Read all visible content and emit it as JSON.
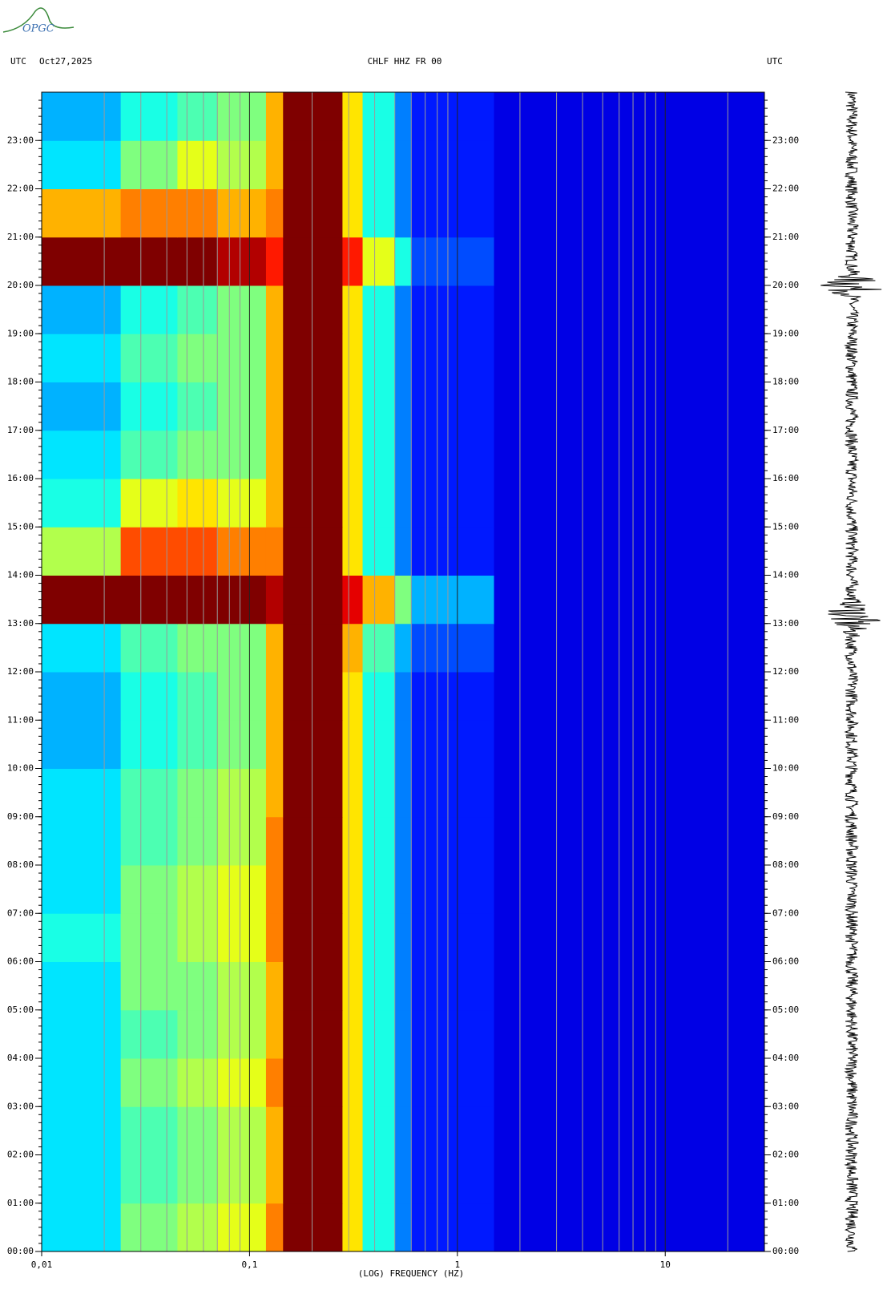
{
  "logo": "OPGC",
  "chart_data": {
    "type": "heatmap",
    "title": "CHLF HHZ FR 00",
    "left_label": "UTC",
    "date": "Oct27,2025",
    "right_label": "UTC",
    "x_label": "(LOG) FREQUENCY (HZ)",
    "log_x": true,
    "xlim": [
      0.01,
      30
    ],
    "xticks": [
      {
        "value": 0.01,
        "label": "0,01"
      },
      {
        "value": 0.1,
        "label": "0,1"
      },
      1,
      10
    ],
    "ylim": [
      0,
      24
    ],
    "yticks": [
      {
        "value": 0,
        "label": "00:00"
      },
      {
        "value": 1,
        "label": "01:00"
      },
      {
        "value": 2,
        "label": "02:00"
      },
      {
        "value": 3,
        "label": "03:00"
      },
      {
        "value": 4,
        "label": "04:00"
      },
      {
        "value": 5,
        "label": "05:00"
      },
      {
        "value": 6,
        "label": "06:00"
      },
      {
        "value": 7,
        "label": "07:00"
      },
      {
        "value": 8,
        "label": "08:00"
      },
      {
        "value": 9,
        "label": "09:00"
      },
      {
        "value": 10,
        "label": "10:00"
      },
      {
        "value": 11,
        "label": "11:00"
      },
      {
        "value": 12,
        "label": "12:00"
      },
      {
        "value": 13,
        "label": "13:00"
      },
      {
        "value": 14,
        "label": "14:00"
      },
      {
        "value": 15,
        "label": "15:00"
      },
      {
        "value": 16,
        "label": "16:00"
      },
      {
        "value": 17,
        "label": "17:00"
      },
      {
        "value": 18,
        "label": "18:00"
      },
      {
        "value": 19,
        "label": "19:00"
      },
      {
        "value": 20,
        "label": "20:00"
      },
      {
        "value": 21,
        "label": "21:00"
      },
      {
        "value": 22,
        "label": "22:00"
      },
      {
        "value": 23,
        "label": "23:00"
      }
    ],
    "bins": [
      0.01,
      0.024,
      0.045,
      0.07,
      0.12,
      0.145,
      0.28,
      0.35,
      0.5,
      0.6,
      1.5,
      30
    ],
    "zlim": [
      0,
      10
    ],
    "colormap": [
      "#00007f",
      "#0000ff",
      "#007fff",
      "#00ffff",
      "#7fff7f",
      "#ffff00",
      "#ff7f00",
      "#ff0000",
      "#7f0000"
    ],
    "grid": true,
    "values": [
      [
        3.5,
        5,
        5.5,
        6,
        7.5,
        10,
        6.5,
        4,
        2.5,
        1.5,
        1
      ],
      [
        3.5,
        4.5,
        5,
        5.5,
        7,
        10,
        6.5,
        4,
        2.5,
        1.5,
        1
      ],
      [
        3.5,
        4.5,
        5,
        5.5,
        7,
        10,
        6.5,
        4,
        2.5,
        1.5,
        1
      ],
      [
        3.5,
        5,
        5.5,
        6,
        7.5,
        10,
        6.5,
        4,
        2.5,
        1.5,
        1
      ],
      [
        3.5,
        4.5,
        5,
        5.5,
        7,
        10,
        6.5,
        4,
        2.5,
        1.5,
        1
      ],
      [
        3.5,
        5,
        5,
        5.5,
        7,
        10,
        6.5,
        4,
        2.5,
        1.5,
        1
      ],
      [
        4,
        5,
        5.5,
        6,
        7.5,
        10,
        6.5,
        4,
        2.5,
        1.5,
        1
      ],
      [
        3.5,
        5,
        5.5,
        6,
        7.5,
        10,
        6.5,
        4,
        2.5,
        1.5,
        1
      ],
      [
        3.5,
        4.5,
        5,
        5.5,
        7.5,
        10,
        6.5,
        4,
        2.5,
        1.5,
        1
      ],
      [
        3.5,
        4.5,
        5,
        5.5,
        7,
        10,
        6.5,
        4,
        2.5,
        1.5,
        1
      ],
      [
        3,
        4,
        4.5,
        5,
        7,
        10,
        6.5,
        4,
        2.5,
        1.5,
        1
      ],
      [
        3,
        4,
        4.5,
        5,
        7,
        10,
        6.5,
        4,
        2.5,
        1.5,
        1
      ],
      [
        3.5,
        4.5,
        5,
        5,
        7,
        10,
        7,
        4.5,
        3,
        2,
        1
      ],
      [
        10,
        10,
        10,
        10,
        9.5,
        10,
        9,
        7,
        5,
        3,
        1
      ],
      [
        5.5,
        8,
        8,
        7.5,
        7.5,
        10,
        6.5,
        4,
        2.5,
        1.5,
        1
      ],
      [
        4,
        6,
        6.5,
        6,
        7,
        10,
        6.5,
        4,
        2.5,
        1.5,
        1
      ],
      [
        3.5,
        4.5,
        5,
        5,
        7,
        10,
        6.5,
        4,
        2.5,
        1.5,
        1
      ],
      [
        3,
        4,
        4.5,
        5,
        7,
        10,
        6.5,
        4,
        2.5,
        1.5,
        1
      ],
      [
        3.5,
        4.5,
        5,
        5,
        7,
        10,
        6.5,
        4,
        2.5,
        1.5,
        1
      ],
      [
        3,
        4,
        4.5,
        5,
        7,
        10,
        6.5,
        4,
        2.5,
        1.5,
        1
      ],
      [
        10,
        10,
        10,
        9.5,
        8.5,
        10,
        8.5,
        6,
        4,
        2,
        1
      ],
      [
        7,
        7.5,
        7.5,
        7,
        7.5,
        10,
        6.5,
        4,
        2.5,
        1.5,
        1
      ],
      [
        3.5,
        5,
        6,
        5.5,
        7,
        10,
        6.5,
        4,
        2.5,
        1.5,
        1
      ],
      [
        3,
        4,
        4.5,
        5,
        7,
        10,
        6.5,
        4,
        2.5,
        1.5,
        1
      ]
    ]
  }
}
